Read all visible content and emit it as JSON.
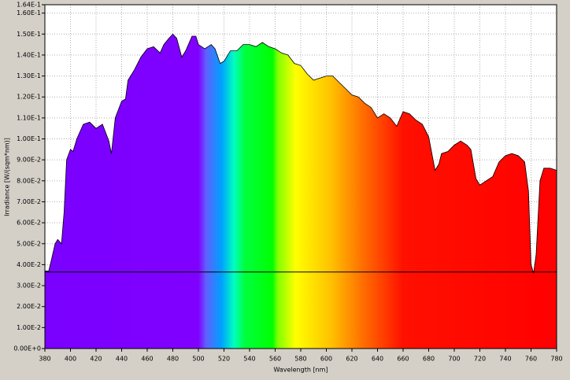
{
  "chart_data": {
    "type": "area",
    "xlabel": "Wavelength [nm]",
    "ylabel": "Irradiance [W/(sqm*nm)]",
    "x": [
      380,
      383,
      385,
      388,
      390,
      393,
      395,
      397,
      400,
      402,
      405,
      410,
      415,
      420,
      425,
      430,
      432,
      435,
      440,
      443,
      445,
      450,
      455,
      460,
      465,
      470,
      473,
      477,
      480,
      483,
      487,
      490,
      495,
      498,
      500,
      505,
      510,
      513,
      517,
      520,
      525,
      530,
      535,
      540,
      545,
      550,
      555,
      560,
      565,
      570,
      575,
      580,
      585,
      590,
      595,
      600,
      605,
      610,
      615,
      620,
      625,
      630,
      635,
      640,
      645,
      650,
      655,
      660,
      665,
      670,
      675,
      680,
      685,
      688,
      690,
      695,
      700,
      705,
      710,
      713,
      717,
      720,
      725,
      730,
      735,
      740,
      745,
      750,
      755,
      758,
      760,
      762,
      764,
      767,
      770,
      775,
      780
    ],
    "y": [
      0.037,
      0.037,
      0.042,
      0.05,
      0.052,
      0.05,
      0.065,
      0.09,
      0.095,
      0.094,
      0.1,
      0.107,
      0.108,
      0.105,
      0.107,
      0.099,
      0.093,
      0.11,
      0.118,
      0.119,
      0.128,
      0.133,
      0.139,
      0.143,
      0.144,
      0.141,
      0.145,
      0.148,
      0.15,
      0.148,
      0.139,
      0.142,
      0.149,
      0.149,
      0.145,
      0.143,
      0.145,
      0.143,
      0.136,
      0.137,
      0.142,
      0.142,
      0.145,
      0.145,
      0.144,
      0.146,
      0.144,
      0.143,
      0.141,
      0.14,
      0.136,
      0.135,
      0.131,
      0.128,
      0.129,
      0.13,
      0.13,
      0.127,
      0.124,
      0.121,
      0.12,
      0.117,
      0.115,
      0.11,
      0.112,
      0.11,
      0.106,
      0.113,
      0.112,
      0.109,
      0.107,
      0.101,
      0.085,
      0.088,
      0.093,
      0.094,
      0.097,
      0.099,
      0.097,
      0.095,
      0.081,
      0.078,
      0.08,
      0.082,
      0.089,
      0.092,
      0.093,
      0.092,
      0.089,
      0.075,
      0.04,
      0.036,
      0.045,
      0.08,
      0.086,
      0.086,
      0.085
    ],
    "hline": 0.0365,
    "xlim": [
      380,
      780
    ],
    "ylim": [
      0,
      0.164
    ],
    "xticks": [
      380,
      400,
      420,
      440,
      460,
      480,
      500,
      520,
      540,
      560,
      580,
      600,
      620,
      640,
      660,
      680,
      700,
      720,
      740,
      760,
      780
    ],
    "yticks": [
      {
        "value": 0,
        "label": "0.00E+0"
      },
      {
        "value": 0.01,
        "label": "1.00E-2"
      },
      {
        "value": 0.02,
        "label": "2.00E-2"
      },
      {
        "value": 0.03,
        "label": "3.00E-2"
      },
      {
        "value": 0.04,
        "label": "4.00E-2"
      },
      {
        "value": 0.05,
        "label": "5.00E-2"
      },
      {
        "value": 0.06,
        "label": "6.00E-2"
      },
      {
        "value": 0.07,
        "label": "7.00E-2"
      },
      {
        "value": 0.08,
        "label": "8.00E-2"
      },
      {
        "value": 0.09,
        "label": "9.00E-2"
      },
      {
        "value": 0.1,
        "label": "1.00E-1"
      },
      {
        "value": 0.11,
        "label": "1.10E-1"
      },
      {
        "value": 0.12,
        "label": "1.20E-1"
      },
      {
        "value": 0.13,
        "label": "1.30E-1"
      },
      {
        "value": 0.14,
        "label": "1.40E-1"
      },
      {
        "value": 0.15,
        "label": "1.50E-1"
      },
      {
        "value": 0.16,
        "label": "1.60E-1"
      },
      {
        "value": 0.164,
        "label": "1.64E-1"
      }
    ],
    "grid": true
  }
}
